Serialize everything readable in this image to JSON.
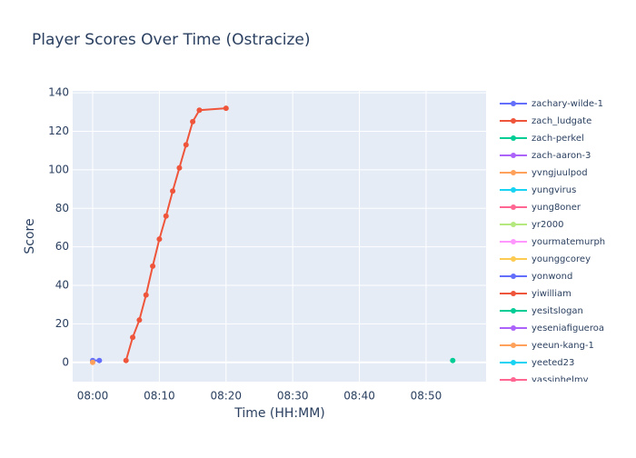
{
  "chart_data": {
    "type": "line",
    "title": "Player Scores Over Time (Ostracize)",
    "x_label": "Time (HH:MM)",
    "y_label": "Score",
    "xlim": [
      "07:57",
      "08:59"
    ],
    "xticks": [
      "08:00",
      "08:10",
      "08:20",
      "08:30",
      "08:40",
      "08:50"
    ],
    "ylim": [
      -10,
      141
    ],
    "yticks": [
      0,
      20,
      40,
      60,
      80,
      100,
      120,
      140
    ],
    "grid": true,
    "series": [
      {
        "name": "zachary-wilde-1",
        "color": "#636efa",
        "x": [
          "08:00",
          "08:01"
        ],
        "values": [
          1,
          1
        ]
      },
      {
        "name": "zach_ludgate",
        "color": "#EF553B",
        "x": [
          "08:05",
          "08:06",
          "08:07",
          "08:08",
          "08:09",
          "08:10",
          "08:11",
          "08:12",
          "08:13",
          "08:14",
          "08:15",
          "08:16",
          "08:20"
        ],
        "values": [
          1,
          13,
          22,
          35,
          50,
          64,
          76,
          89,
          101,
          113,
          125,
          131,
          132
        ]
      },
      {
        "name": "zach-perkel",
        "color": "#00cc96",
        "x": [
          "08:54"
        ],
        "values": [
          1
        ]
      },
      {
        "name": "zach-aaron-3",
        "color": "#ab63fa",
        "x": [],
        "values": []
      },
      {
        "name": "yvngjuulpod",
        "color": "#FFA15A",
        "x": [
          "08:00"
        ],
        "values": [
          0
        ]
      },
      {
        "name": "yungvirus",
        "color": "#19d3f3",
        "x": [],
        "values": []
      },
      {
        "name": "yung8oner",
        "color": "#FF6692",
        "x": [],
        "values": []
      },
      {
        "name": "yr2000",
        "color": "#B6E880",
        "x": [],
        "values": []
      },
      {
        "name": "yourmatemurph",
        "color": "#FF97FF",
        "x": [],
        "values": []
      },
      {
        "name": "younggcorey",
        "color": "#FECB52",
        "x": [],
        "values": []
      },
      {
        "name": "yonwond",
        "color": "#636efa",
        "x": [],
        "values": []
      },
      {
        "name": "yiwilliam",
        "color": "#EF553B",
        "x": [],
        "values": []
      },
      {
        "name": "yesitslogan",
        "color": "#00cc96",
        "x": [],
        "values": []
      },
      {
        "name": "yeseniafigueroa",
        "color": "#ab63fa",
        "x": [],
        "values": []
      },
      {
        "name": "yeeun-kang-1",
        "color": "#FFA15A",
        "x": [],
        "values": []
      },
      {
        "name": "yeeted23",
        "color": "#19d3f3",
        "x": [],
        "values": []
      },
      {
        "name": "yassinhelmy",
        "color": "#FF6692",
        "x": [],
        "values": []
      }
    ]
  }
}
